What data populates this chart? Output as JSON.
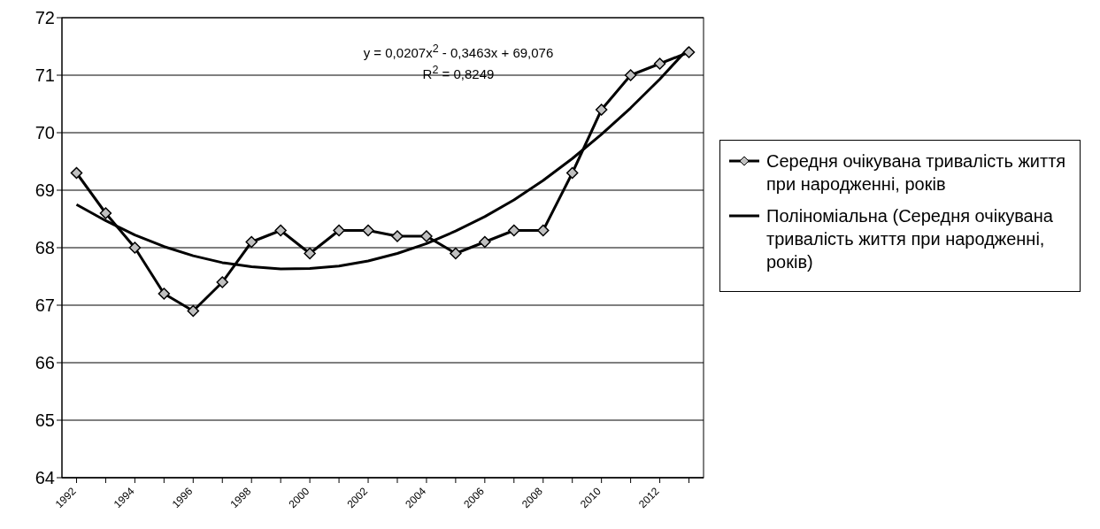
{
  "chart_data": {
    "type": "line",
    "categories": [
      "1992",
      null,
      "1994",
      null,
      "1996",
      null,
      "1998",
      null,
      "2000",
      null,
      "2002",
      null,
      "2004",
      null,
      "2006",
      null,
      "2008",
      null,
      "2010",
      null,
      "2012",
      null
    ],
    "series": [
      {
        "name": "Середня очікувана тривалість життя при народженні, років",
        "color": "#000000",
        "marker": "diamond",
        "values": [
          69.3,
          68.6,
          68.0,
          67.2,
          66.9,
          67.4,
          68.1,
          68.3,
          67.9,
          68.3,
          68.3,
          68.2,
          68.2,
          67.9,
          68.1,
          68.3,
          68.3,
          69.3,
          70.4,
          71.0,
          71.2,
          71.4
        ]
      },
      {
        "name": "Поліноміальна (Середня очікувана тривалість життя при народженні, років)",
        "color": "#000000",
        "marker": "none",
        "values": [
          68.75,
          68.47,
          68.22,
          68.02,
          67.86,
          67.74,
          67.67,
          67.63,
          67.64,
          67.68,
          67.77,
          67.9,
          68.07,
          68.29,
          68.54,
          68.83,
          69.17,
          69.55,
          69.97,
          70.43,
          70.93,
          71.48
        ]
      }
    ],
    "ylim": [
      64,
      72
    ],
    "yticks": [
      64,
      65,
      66,
      67,
      68,
      69,
      70,
      71,
      72
    ],
    "grid": "y",
    "legend": "right",
    "line_style": "solid",
    "annotations": [
      "y = 0,0207x$^{2}$ - 0,3463x + 69,076",
      "R$^{2}$ = 0,8249"
    ]
  }
}
